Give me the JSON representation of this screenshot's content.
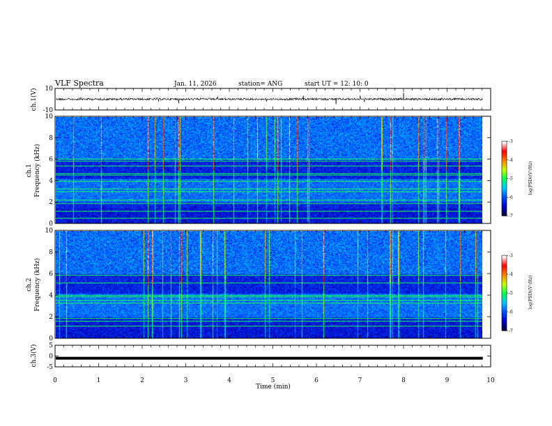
{
  "header": {
    "title": "VLF Spectra",
    "date": "Jan. 11, 2026",
    "station": "station= ANG",
    "start_time": "start  UT =   12: 10: 0"
  },
  "chart_data": {
    "type": "heatmap",
    "x": {
      "label": "Time  (min)",
      "range": [
        0,
        10
      ],
      "ticks": [
        "0",
        "1",
        "2",
        "3",
        "4",
        "5",
        "6",
        "7",
        "8",
        "9",
        "10"
      ],
      "data_end_min": 9.82
    },
    "panels": [
      {
        "id": "ch1_waveform",
        "type": "line",
        "ylabel": "ch.1(V)",
        "yrange": [
          -10,
          10
        ],
        "yticks": [
          "10",
          "-10"
        ],
        "baseline_v": 0
      },
      {
        "id": "ch1_spectrogram",
        "type": "heatmap",
        "ylabel_line1": "ch.1",
        "ylabel_line2": "Frequency  (kHz)",
        "yrange": [
          0,
          10
        ],
        "yticks": [
          "0",
          "2",
          "4",
          "6",
          "8",
          "10"
        ],
        "colorbar": {
          "label": "log(PSD)(V²/Hz)",
          "range": [
            -7,
            -3
          ],
          "ticks": [
            "-3",
            "-4",
            "-5",
            "-6",
            "-7"
          ]
        },
        "steady_lines_khz": [
          0.5,
          1.2,
          1.9,
          2.2,
          3.0,
          3.3,
          4.0,
          4.6,
          4.7,
          5.4,
          5.9,
          6.1
        ]
      },
      {
        "id": "ch2_spectrogram",
        "type": "heatmap",
        "ylabel_line1": "ch.2",
        "ylabel_line2": "Frequency  (kHz)",
        "yrange": [
          0,
          10
        ],
        "yticks": [
          "0",
          "2",
          "4",
          "6",
          "8",
          "10"
        ],
        "colorbar": {
          "label": "log(PSD)(V²/Hz)",
          "range": [
            -7,
            -3
          ],
          "ticks": [
            "-3",
            "-4",
            "-5",
            "-6",
            "-7"
          ]
        },
        "steady_lines_khz": [
          1.2,
          1.6,
          1.9,
          3.3,
          3.6,
          3.9,
          4.0,
          5.2,
          5.9
        ]
      },
      {
        "id": "ch3_waveform",
        "type": "line",
        "ylabel": "ch.3(V)",
        "yrange": [
          -5,
          5
        ],
        "yticks": [
          "5",
          "0",
          "-5"
        ],
        "level_v": -1.0
      }
    ]
  },
  "colors": {
    "background_low": "#00007a",
    "colormap": [
      "#00003a",
      "#0000c8",
      "#0050ff",
      "#00c8ff",
      "#00ff50",
      "#c8ff00",
      "#ff8000",
      "#ff0000",
      "#ffffff"
    ],
    "trace": "#000000"
  }
}
